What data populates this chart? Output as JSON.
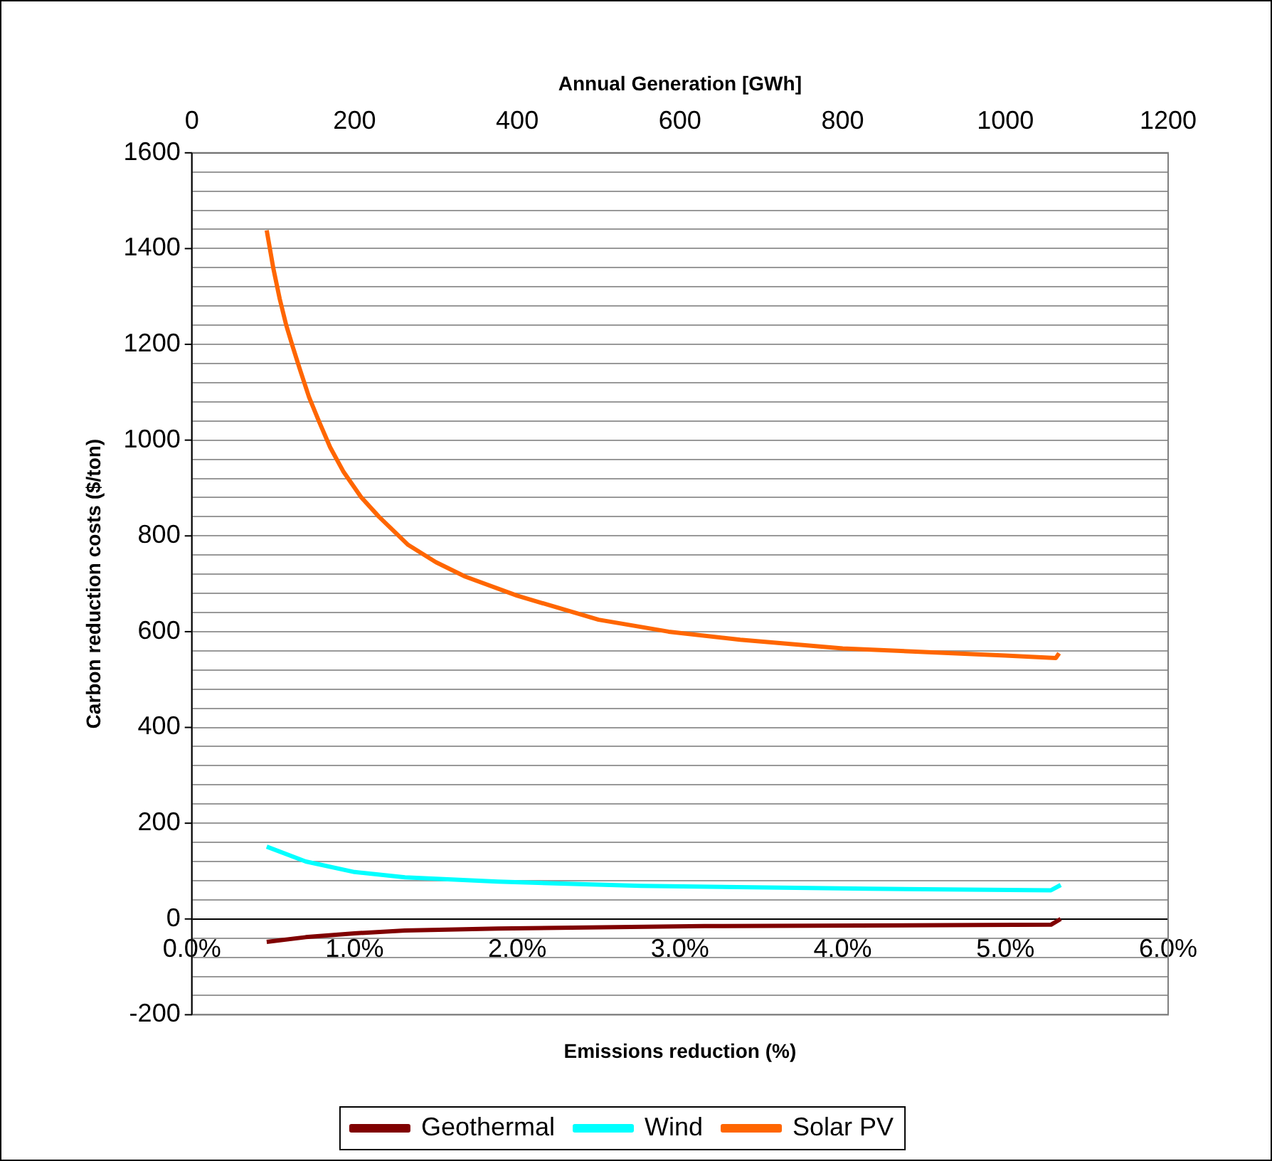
{
  "chart_data": {
    "type": "line",
    "xlabel": "Emissions reduction (%)",
    "ylabel": "Carbon reduction costs ($/ton)",
    "x2label": "Annual Generation [GWh]",
    "xlim": [
      0,
      6
    ],
    "xticks": [
      {
        "value": 0,
        "label": "0.0%"
      },
      {
        "value": 1,
        "label": "1.0%"
      },
      {
        "value": 2,
        "label": "2.0%"
      },
      {
        "value": 3,
        "label": "3.0%"
      },
      {
        "value": 4,
        "label": "4.0%"
      },
      {
        "value": 5,
        "label": "5.0%"
      },
      {
        "value": 6,
        "label": "6.0%"
      }
    ],
    "x2lim": [
      0,
      1200
    ],
    "x2ticks": [
      0,
      200,
      400,
      600,
      800,
      1000,
      1200
    ],
    "ylim": [
      -200,
      1600
    ],
    "yticks": [
      -200,
      {
        "value": -160,
        "label": null
      },
      {
        "value": -120,
        "label": null
      },
      {
        "value": -80,
        "label": null
      },
      {
        "value": -40,
        "label": null
      },
      0,
      {
        "value": 40,
        "label": null
      },
      {
        "value": 80,
        "label": null
      },
      {
        "value": 120,
        "label": null
      },
      {
        "value": 160,
        "label": null
      },
      200,
      {
        "value": 240,
        "label": null
      },
      {
        "value": 280,
        "label": null
      },
      {
        "value": 320,
        "label": null
      },
      {
        "value": 360,
        "label": null
      },
      400,
      {
        "value": 440,
        "label": null
      },
      {
        "value": 480,
        "label": null
      },
      {
        "value": 520,
        "label": null
      },
      {
        "value": 560,
        "label": null
      },
      600,
      {
        "value": 640,
        "label": null
      },
      {
        "value": 680,
        "label": null
      },
      {
        "value": 720,
        "label": null
      },
      {
        "value": 760,
        "label": null
      },
      800,
      {
        "value": 840,
        "label": null
      },
      {
        "value": 880,
        "label": null
      },
      {
        "value": 920,
        "label": null
      },
      {
        "value": 960,
        "label": null
      },
      1000,
      {
        "value": 1040,
        "label": null
      },
      {
        "value": 1080,
        "label": null
      },
      {
        "value": 1120,
        "label": null
      },
      {
        "value": 1160,
        "label": null
      },
      1200,
      {
        "value": 1240,
        "label": null
      },
      {
        "value": 1280,
        "label": null
      },
      {
        "value": 1320,
        "label": null
      },
      {
        "value": 1360,
        "label": null
      },
      1400,
      {
        "value": 1440,
        "label": null
      },
      {
        "value": 1480,
        "label": null
      },
      {
        "value": 1520,
        "label": null
      },
      {
        "value": 1560,
        "label": null
      },
      1600
    ],
    "grid": "y",
    "legend": "bottom",
    "line_style": "solid",
    "marker": "none",
    "series": [
      {
        "name": "Geothermal",
        "color": "#800000",
        "x": [
          0.46,
          0.7,
          1.0,
          1.31,
          1.88,
          3.15,
          5.28,
          5.34
        ],
        "values": [
          -48,
          -38,
          -30,
          -24,
          -20,
          -15,
          -12,
          0
        ]
      },
      {
        "name": "Wind",
        "color": "#00ffff",
        "x": [
          0.46,
          0.7,
          1.0,
          1.31,
          1.88,
          2.76,
          4.16,
          5.28,
          5.34
        ],
        "values": [
          151,
          120,
          98,
          87,
          78,
          69,
          63,
          60,
          71
        ]
      },
      {
        "name": "Solar PV",
        "color": "#ff6600",
        "x": [
          0.46,
          0.5,
          0.54,
          0.58,
          0.62,
          0.66,
          0.72,
          0.78,
          0.85,
          0.93,
          1.04,
          1.15,
          1.33,
          1.5,
          1.68,
          2.0,
          2.5,
          2.93,
          3.37,
          4.0,
          5.0,
          5.31,
          5.33
        ],
        "values": [
          1438,
          1360,
          1295,
          1240,
          1195,
          1152,
          1090,
          1040,
          985,
          935,
          881,
          840,
          781,
          745,
          715,
          675,
          625,
          600,
          583,
          565,
          550,
          545,
          555
        ]
      }
    ]
  }
}
